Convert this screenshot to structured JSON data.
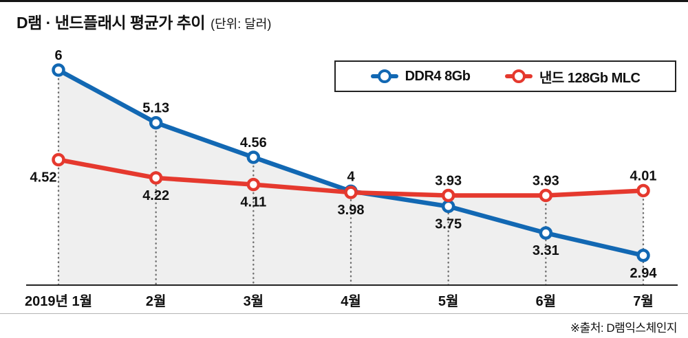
{
  "header": {
    "title": "D램 · 낸드플래시 평균가 추이",
    "unit": "(단위: 달러)"
  },
  "legend": {
    "items": [
      {
        "label": "DDR4 8Gb",
        "color": "#1268b3"
      },
      {
        "label": "낸드 128Gb MLC",
        "color": "#e5392e"
      }
    ]
  },
  "source": "※출처: D램익스체인지",
  "chart_data": {
    "type": "line",
    "title": "D램 · 낸드플래시 평균가 추이",
    "unit_label": "(단위: 달러)",
    "categories": [
      "2019년 1월",
      "2월",
      "3월",
      "4월",
      "5월",
      "6월",
      "7월"
    ],
    "series": [
      {
        "name": "DDR4 8Gb",
        "color": "#1268b3",
        "values": [
          6,
          5.13,
          4.56,
          4,
          3.75,
          3.31,
          2.94
        ],
        "label_positions": [
          "above",
          "above",
          "above",
          "above",
          "below",
          "below",
          "below"
        ]
      },
      {
        "name": "낸드 128Gb MLC",
        "color": "#e5392e",
        "values": [
          4.52,
          4.22,
          4.11,
          3.98,
          3.93,
          3.93,
          4.01
        ],
        "label_positions": [
          "below-left",
          "below",
          "below",
          "below",
          "above",
          "above",
          "above"
        ]
      }
    ],
    "ylim": [
      2.45,
      6.3
    ],
    "grid": "dotted vertical droplines from each point to baseline",
    "area_fill": "#efefef",
    "legend_position": "top",
    "source": "※출처: D램익스체인지"
  }
}
